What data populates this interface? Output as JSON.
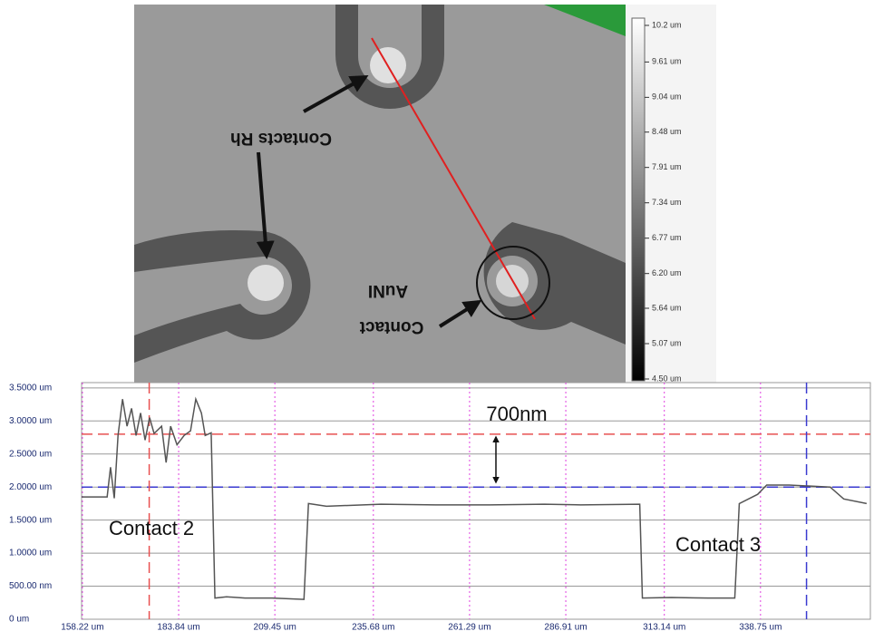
{
  "image": {
    "annotations": {
      "contacts_rh": "Contacts Rh",
      "contact": "Contact",
      "auni": "AuNI"
    },
    "colorbar": {
      "lim": [
        4.5,
        10.2
      ],
      "ticks": [
        {
          "value": 10.2,
          "label": "10.2 um"
        },
        {
          "value": 9.61,
          "label": "9.61 um"
        },
        {
          "value": 9.04,
          "label": "9.04 um"
        },
        {
          "value": 8.48,
          "label": "8.48 um"
        },
        {
          "value": 7.91,
          "label": "7.91 um"
        },
        {
          "value": 7.34,
          "label": "7.34 um"
        },
        {
          "value": 6.77,
          "label": "6.77 um"
        },
        {
          "value": 6.2,
          "label": "6.20 um"
        },
        {
          "value": 5.64,
          "label": "5.64 um"
        },
        {
          "value": 5.07,
          "label": "5.07 um"
        },
        {
          "value": 4.5,
          "label": "4.50 um"
        }
      ]
    }
  },
  "chart_data": {
    "type": "line",
    "annotations": [
      "700nm",
      "Contact 2",
      "Contact 3"
    ],
    "x": [
      158.0,
      164.8,
      165.7,
      166.7,
      167.7,
      168.9,
      170.1,
      171.3,
      172.5,
      173.7,
      174.9,
      176.1,
      177.3,
      179.3,
      180.5,
      181.7,
      183.4,
      185.3,
      187.0,
      188.4,
      189.9,
      190.9,
      192.5,
      193.5,
      196.6,
      201.5,
      208.7,
      217.2,
      218.4,
      223.2,
      237.7,
      252.2,
      266.7,
      281.2,
      290.9,
      306.6,
      307.3,
      315.0,
      324.7,
      331.9,
      333.1,
      338.0,
      340.4,
      346.4,
      357.3,
      360.9,
      367.0
    ],
    "series": [
      {
        "color": "#555555",
        "values": [
          1.85,
          1.85,
          2.3,
          1.83,
          2.78,
          3.33,
          2.92,
          3.19,
          2.78,
          3.12,
          2.71,
          3.05,
          2.81,
          2.92,
          2.37,
          2.92,
          2.64,
          2.78,
          2.85,
          3.33,
          3.12,
          2.78,
          2.82,
          0.32,
          0.34,
          0.32,
          0.32,
          0.3,
          1.75,
          1.71,
          1.74,
          1.73,
          1.73,
          1.74,
          1.73,
          1.74,
          0.32,
          0.33,
          0.32,
          0.32,
          1.75,
          1.89,
          2.03,
          2.03,
          2.0,
          1.82,
          1.75
        ]
      }
    ],
    "xlim": [
      158,
      368
    ],
    "ylim": [
      0,
      3.58
    ],
    "xticks": [
      {
        "value": 158.22,
        "label": "158.22 um"
      },
      {
        "value": 183.84,
        "label": "183.84 um"
      },
      {
        "value": 209.45,
        "label": "209.45 um"
      },
      {
        "value": 235.68,
        "label": "235.68 um"
      },
      {
        "value": 261.29,
        "label": "261.29 um"
      },
      {
        "value": 286.91,
        "label": "286.91 um"
      },
      {
        "value": 313.14,
        "label": "313.14 um"
      },
      {
        "value": 338.75,
        "label": "338.75 um"
      }
    ],
    "yticks": [
      {
        "value": 0,
        "label": "0 um"
      },
      {
        "value": 0.5,
        "label": "500.00 nm"
      },
      {
        "value": 1,
        "label": "1.0000 um"
      },
      {
        "value": 1.5,
        "label": "1.5000 um"
      },
      {
        "value": 2,
        "label": "2.0000 um"
      },
      {
        "value": 2.5,
        "label": "2.5000 um"
      },
      {
        "value": 3,
        "label": "3.0000 um"
      },
      {
        "value": 3.5,
        "label": "3.5000 um"
      }
    ],
    "reference_lines": [
      {
        "axis": "y",
        "value": 2.8,
        "color": "#e85050"
      },
      {
        "axis": "y",
        "value": 2.0,
        "color": "#3a3ad0"
      },
      {
        "axis": "x",
        "value": 176.0,
        "color": "#e85050"
      },
      {
        "axis": "x",
        "value": 351.0,
        "color": "#3a3ad0"
      }
    ],
    "grid": true,
    "xgrid_color": "#e040e0",
    "ygrid_color": "#999999"
  }
}
